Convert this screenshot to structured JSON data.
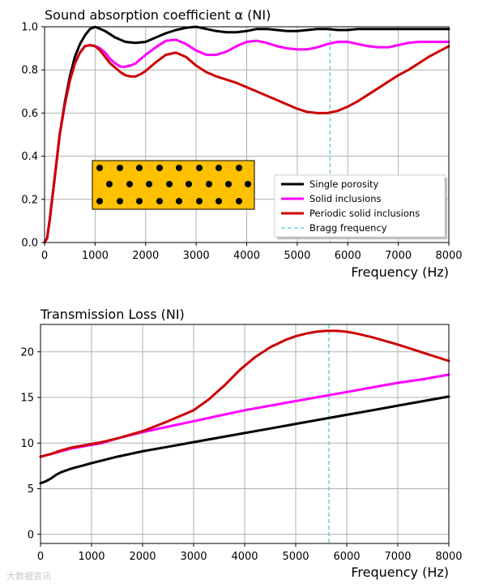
{
  "chart_data": [
    {
      "type": "line",
      "title": "Sound absorption coefficient α (NI)",
      "xlabel": "Frequency (Hz)",
      "ylabel": "",
      "xlim": [
        0,
        8000
      ],
      "ylim": [
        0,
        1.0
      ],
      "xticks": [
        "0",
        "1000",
        "2000",
        "3000",
        "4000",
        "5000",
        "6000",
        "7000",
        "8000"
      ],
      "yticks": [
        "0.0",
        "0.2",
        "0.4",
        "0.6",
        "0.8",
        "1.0"
      ],
      "grid": true,
      "legend_position": "lower-right",
      "bragg_frequency": 5650,
      "series": [
        {
          "name": "Single porosity",
          "color": "#000000",
          "x": [
            0,
            50,
            100,
            200,
            300,
            400,
            500,
            600,
            700,
            800,
            900,
            1000,
            1200,
            1400,
            1600,
            1800,
            2000,
            2200,
            2400,
            2600,
            2800,
            3000,
            3200,
            3400,
            3600,
            3800,
            4000,
            4200,
            4400,
            4600,
            4800,
            5000,
            5200,
            5400,
            5600,
            5800,
            6000,
            6200,
            6400,
            6600,
            6800,
            7000,
            7200,
            7400,
            7600,
            7800,
            8000
          ],
          "y": [
            0.0,
            0.02,
            0.1,
            0.3,
            0.5,
            0.65,
            0.77,
            0.86,
            0.92,
            0.96,
            0.99,
            1.0,
            0.98,
            0.95,
            0.93,
            0.925,
            0.93,
            0.95,
            0.97,
            0.985,
            0.995,
            1.0,
            0.99,
            0.98,
            0.975,
            0.975,
            0.98,
            0.99,
            0.99,
            0.985,
            0.98,
            0.98,
            0.985,
            0.99,
            0.99,
            0.985,
            0.985,
            0.99,
            0.99,
            0.99,
            0.99,
            0.99,
            0.99,
            0.99,
            0.99,
            0.99,
            0.99
          ]
        },
        {
          "name": "Solid inclusions",
          "color": "#ff00ff",
          "x": [
            0,
            50,
            100,
            200,
            300,
            400,
            500,
            600,
            700,
            800,
            900,
            1000,
            1100,
            1200,
            1300,
            1400,
            1500,
            1600,
            1700,
            1800,
            1900,
            2000,
            2200,
            2400,
            2600,
            2800,
            3000,
            3200,
            3400,
            3600,
            3800,
            4000,
            4200,
            4400,
            4600,
            4800,
            5000,
            5200,
            5400,
            5600,
            5800,
            6000,
            6200,
            6400,
            6600,
            6800,
            7000,
            7200,
            7400,
            7600,
            7800,
            8000
          ],
          "y": [
            0.0,
            0.02,
            0.1,
            0.3,
            0.5,
            0.64,
            0.75,
            0.83,
            0.88,
            0.91,
            0.915,
            0.91,
            0.9,
            0.88,
            0.85,
            0.83,
            0.815,
            0.815,
            0.82,
            0.83,
            0.85,
            0.87,
            0.905,
            0.935,
            0.94,
            0.92,
            0.89,
            0.87,
            0.87,
            0.885,
            0.91,
            0.93,
            0.935,
            0.925,
            0.91,
            0.9,
            0.895,
            0.895,
            0.905,
            0.92,
            0.93,
            0.93,
            0.92,
            0.91,
            0.905,
            0.905,
            0.915,
            0.925,
            0.93,
            0.93,
            0.93,
            0.93
          ]
        },
        {
          "name": "Periodic solid inclusions",
          "color": "#cc0000",
          "x": [
            0,
            50,
            100,
            200,
            300,
            400,
            500,
            600,
            700,
            800,
            900,
            1000,
            1100,
            1200,
            1300,
            1400,
            1500,
            1600,
            1700,
            1800,
            1900,
            2000,
            2200,
            2400,
            2600,
            2800,
            3000,
            3200,
            3400,
            3600,
            3800,
            4000,
            4200,
            4400,
            4600,
            4800,
            5000,
            5200,
            5400,
            5600,
            5800,
            6000,
            6200,
            6400,
            6600,
            6800,
            7000,
            7200,
            7400,
            7600,
            7800,
            8000
          ],
          "y": [
            0.0,
            0.02,
            0.1,
            0.3,
            0.5,
            0.64,
            0.75,
            0.83,
            0.88,
            0.91,
            0.915,
            0.91,
            0.89,
            0.86,
            0.83,
            0.81,
            0.79,
            0.775,
            0.77,
            0.77,
            0.78,
            0.795,
            0.835,
            0.87,
            0.88,
            0.86,
            0.82,
            0.79,
            0.77,
            0.755,
            0.74,
            0.72,
            0.7,
            0.68,
            0.66,
            0.64,
            0.62,
            0.605,
            0.6,
            0.6,
            0.61,
            0.63,
            0.655,
            0.685,
            0.715,
            0.745,
            0.775,
            0.8,
            0.83,
            0.86,
            0.885,
            0.91
          ]
        }
      ]
    },
    {
      "type": "line",
      "title": "Transmission Loss (NI)",
      "xlabel": "Frequency (Hz)",
      "ylabel": "",
      "xlim": [
        0,
        8000
      ],
      "ylim": [
        -1,
        23
      ],
      "xticks": [
        "0",
        "1000",
        "2000",
        "3000",
        "4000",
        "5000",
        "6000",
        "7000",
        "8000"
      ],
      "yticks": [
        "0",
        "5",
        "10",
        "15",
        "20"
      ],
      "grid": true,
      "bragg_frequency": 5650,
      "series": [
        {
          "name": "Single porosity",
          "color": "#000000",
          "x": [
            0,
            100,
            200,
            300,
            400,
            500,
            600,
            800,
            1000,
            1500,
            2000,
            2500,
            3000,
            3500,
            4000,
            4500,
            5000,
            5500,
            6000,
            6500,
            7000,
            7500,
            8000
          ],
          "y": [
            5.6,
            5.8,
            6.1,
            6.5,
            6.8,
            7.0,
            7.2,
            7.5,
            7.8,
            8.5,
            9.1,
            9.6,
            10.1,
            10.6,
            11.1,
            11.6,
            12.1,
            12.6,
            13.1,
            13.6,
            14.1,
            14.6,
            15.1
          ]
        },
        {
          "name": "Solid inclusions",
          "color": "#ff00ff",
          "x": [
            0,
            200,
            400,
            600,
            800,
            1000,
            1200,
            1500,
            2000,
            2500,
            3000,
            3500,
            4000,
            4500,
            5000,
            5500,
            6000,
            6500,
            7000,
            7500,
            8000
          ],
          "y": [
            8.5,
            8.8,
            9.1,
            9.4,
            9.6,
            9.8,
            10.0,
            10.5,
            11.2,
            11.8,
            12.4,
            13.0,
            13.6,
            14.1,
            14.6,
            15.1,
            15.6,
            16.1,
            16.6,
            17.0,
            17.5
          ]
        },
        {
          "name": "Periodic solid inclusions",
          "color": "#cc0000",
          "x": [
            0,
            200,
            400,
            600,
            800,
            1000,
            1200,
            1500,
            2000,
            2500,
            3000,
            3300,
            3600,
            3900,
            4200,
            4500,
            4800,
            5000,
            5200,
            5400,
            5600,
            5800,
            6000,
            6200,
            6500,
            7000,
            7500,
            8000
          ],
          "y": [
            8.5,
            8.8,
            9.2,
            9.5,
            9.7,
            9.9,
            10.1,
            10.5,
            11.3,
            12.4,
            13.6,
            14.8,
            16.3,
            18.0,
            19.4,
            20.5,
            21.3,
            21.7,
            22.0,
            22.2,
            22.3,
            22.3,
            22.2,
            22.0,
            21.6,
            20.8,
            19.9,
            19.0
          ]
        }
      ]
    }
  ],
  "watermark": "大数据资讯"
}
